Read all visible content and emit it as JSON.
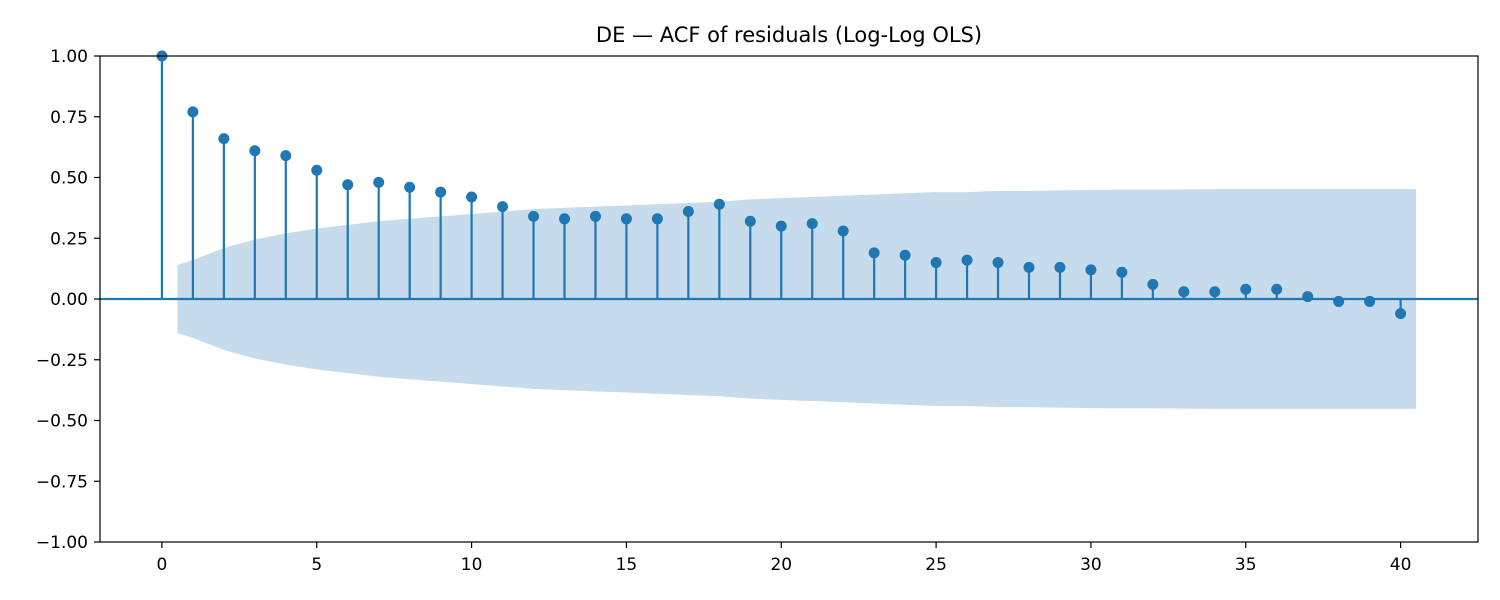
{
  "chart_data": {
    "type": "stem",
    "title": "DE — ACF of residuals (Log-Log OLS)",
    "xlabel": "",
    "ylabel": "",
    "xlim": [
      -2,
      42.5
    ],
    "ylim": [
      -1.0,
      1.0
    ],
    "xticks": [
      0,
      5,
      10,
      15,
      20,
      25,
      30,
      35,
      40
    ],
    "xtick_labels": [
      "0",
      "5",
      "10",
      "15",
      "20",
      "25",
      "30",
      "35",
      "40"
    ],
    "yticks": [
      -1.0,
      -0.75,
      -0.5,
      -0.25,
      0.0,
      0.25,
      0.5,
      0.75,
      1.0
    ],
    "ytick_labels": [
      "−1.00",
      "−0.75",
      "−0.50",
      "−0.25",
      "0.00",
      "0.25",
      "0.50",
      "0.75",
      "1.00"
    ],
    "grid": false,
    "lags": [
      0,
      1,
      2,
      3,
      4,
      5,
      6,
      7,
      8,
      9,
      10,
      11,
      12,
      13,
      14,
      15,
      16,
      17,
      18,
      19,
      20,
      21,
      22,
      23,
      24,
      25,
      26,
      27,
      28,
      29,
      30,
      31,
      32,
      33,
      34,
      35,
      36,
      37,
      38,
      39,
      40
    ],
    "acf": [
      1.0,
      0.77,
      0.66,
      0.61,
      0.59,
      0.53,
      0.47,
      0.48,
      0.46,
      0.44,
      0.42,
      0.38,
      0.34,
      0.33,
      0.34,
      0.33,
      0.33,
      0.36,
      0.39,
      0.32,
      0.3,
      0.31,
      0.28,
      0.19,
      0.18,
      0.15,
      0.16,
      0.15,
      0.13,
      0.13,
      0.12,
      0.11,
      0.06,
      0.03,
      0.03,
      0.04,
      0.04,
      0.01,
      -0.01,
      -0.01,
      -0.06
    ],
    "confidence_band": {
      "x": [
        0.5,
        1,
        2,
        3,
        4,
        5,
        6,
        7,
        8,
        9,
        10,
        11,
        12,
        13,
        14,
        15,
        16,
        17,
        18,
        19,
        20,
        21,
        22,
        23,
        24,
        25,
        26,
        27,
        28,
        29,
        30,
        31,
        32,
        33,
        34,
        35,
        36,
        37,
        38,
        39,
        40,
        40.5
      ],
      "upper": [
        0.14,
        0.16,
        0.21,
        0.245,
        0.27,
        0.29,
        0.305,
        0.32,
        0.33,
        0.34,
        0.35,
        0.36,
        0.37,
        0.375,
        0.38,
        0.385,
        0.39,
        0.395,
        0.4,
        0.41,
        0.415,
        0.42,
        0.425,
        0.43,
        0.435,
        0.44,
        0.44,
        0.445,
        0.445,
        0.447,
        0.449,
        0.45,
        0.45,
        0.451,
        0.452,
        0.452,
        0.452,
        0.452,
        0.452,
        0.452,
        0.452,
        0.452
      ]
    },
    "colors": {
      "stem": "#1f77b4",
      "marker": "#1f77b4",
      "band": "#c6dcec",
      "zero_line": "#1f77b4"
    }
  }
}
